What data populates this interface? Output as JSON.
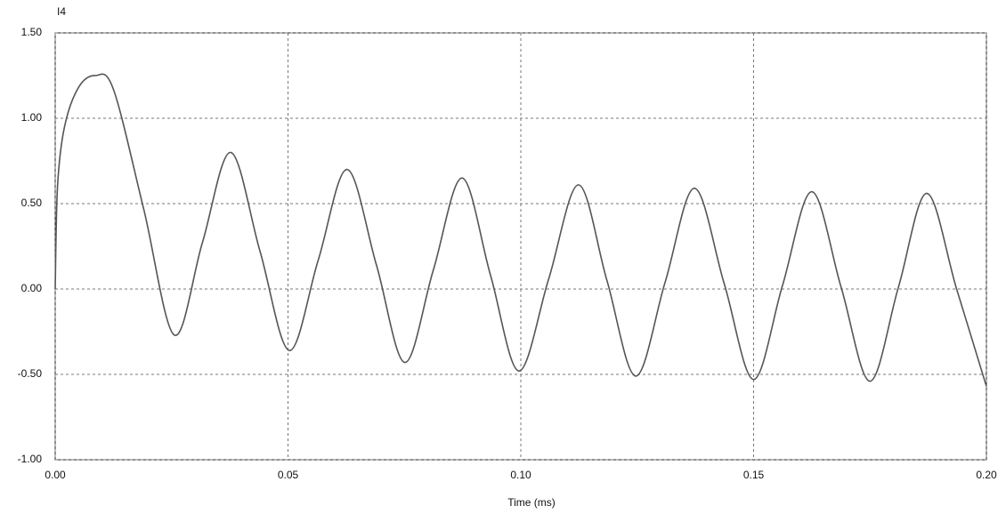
{
  "chart_data": {
    "type": "line",
    "ylabel": "I4",
    "xlabel": "Time (ms)",
    "x": [
      0,
      0.0005,
      0.002,
      0.005,
      0.0086,
      0.0125,
      0.019,
      0.0256,
      0.0316,
      0.0377,
      0.044,
      0.0503,
      0.0565,
      0.0627,
      0.069,
      0.0751,
      0.0812,
      0.0874,
      0.0935,
      0.0996,
      0.106,
      0.1124,
      0.1185,
      0.1247,
      0.131,
      0.1373,
      0.1437,
      0.15,
      0.1562,
      0.1625,
      0.1688,
      0.175,
      0.1811,
      0.1872,
      0.1936,
      0.2
    ],
    "series": [
      {
        "name": "I4",
        "color": "#555555",
        "values": [
          0,
          0.6,
          0.95,
          1.18,
          1.25,
          1.17,
          0.47,
          -0.27,
          0.27,
          0.8,
          0.22,
          -0.36,
          0.17,
          0.7,
          0.14,
          -0.43,
          0.11,
          0.65,
          0.08,
          -0.48,
          0.06,
          0.61,
          0.05,
          -0.51,
          0.04,
          0.59,
          0.03,
          -0.53,
          0.02,
          0.57,
          0.01,
          -0.54,
          0.01,
          0.56,
          0,
          -0.57
        ]
      }
    ],
    "xlim": [
      0,
      0.2
    ],
    "xticks": [
      {
        "value": 0,
        "label": "0.00"
      },
      {
        "value": 0.05,
        "label": "0.05"
      },
      {
        "value": 0.1,
        "label": "0.10"
      },
      {
        "value": 0.15,
        "label": "0.15"
      },
      {
        "value": 0.2,
        "label": "0.20"
      }
    ],
    "ylim": [
      -1,
      1.5
    ],
    "yticks": [
      {
        "value": -1,
        "label": "-1.00"
      },
      {
        "value": -0.5,
        "label": "-0.50"
      },
      {
        "value": 0,
        "label": "0.00"
      },
      {
        "value": 0.5,
        "label": "0.50"
      },
      {
        "value": 1,
        "label": "1.00"
      },
      {
        "value": 1.5,
        "label": "1.50"
      }
    ],
    "grid": true
  }
}
